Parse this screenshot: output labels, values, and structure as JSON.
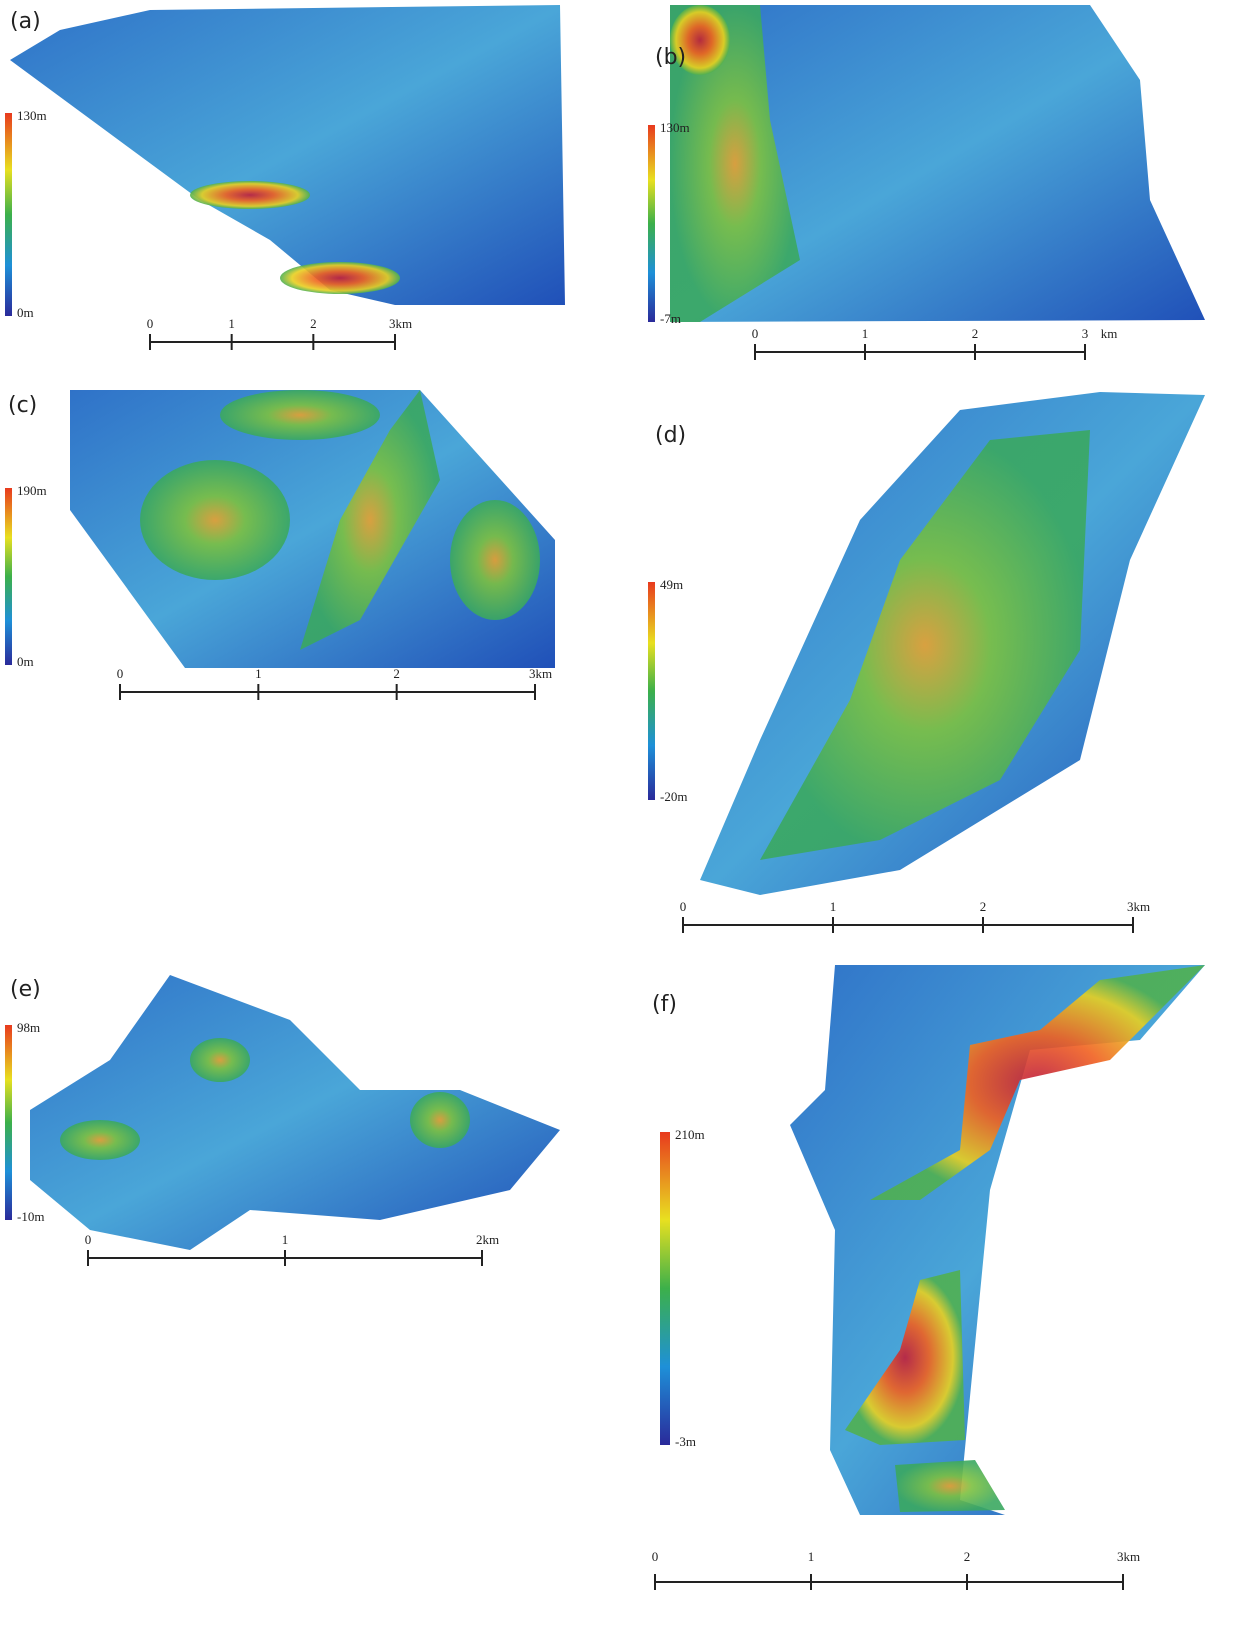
{
  "panels": [
    {
      "label": "(a)",
      "colorbar": [
        "130m",
        "0m"
      ],
      "scale": [
        "0",
        "1",
        "2",
        "3km"
      ]
    },
    {
      "label": "(b)",
      "colorbar": [
        "130m",
        "-7m"
      ],
      "scale": [
        "0",
        "1",
        "2",
        "3",
        "km"
      ]
    },
    {
      "label": "(c)",
      "colorbar": [
        "190m",
        "0m"
      ],
      "scale": [
        "0",
        "1",
        "2",
        "3km"
      ]
    },
    {
      "label": "(d)",
      "colorbar": [
        "49m",
        "-20m"
      ],
      "scale": [
        "0",
        "1",
        "2",
        "3km"
      ]
    },
    {
      "label": "(e)",
      "colorbar": [
        "98m",
        "-10m"
      ],
      "scale": [
        "0",
        "1",
        "2km"
      ]
    },
    {
      "label": "(f)",
      "colorbar": [
        "210m",
        "-3m"
      ],
      "scale": [
        "0",
        "1",
        "2",
        "3km"
      ]
    }
  ]
}
